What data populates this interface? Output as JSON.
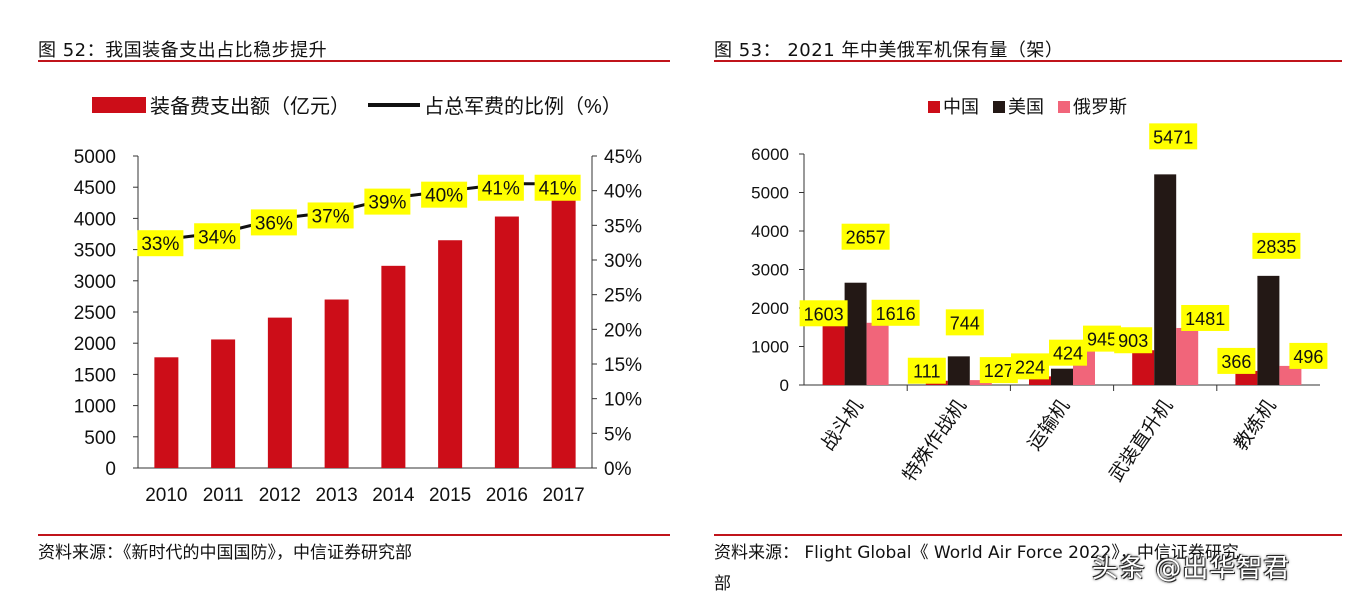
{
  "colors": {
    "accent": "#c0141b",
    "china": "#cc0d18",
    "usa": "#231815",
    "russia": "#f1657a",
    "label_bg": "#ffff00"
  },
  "left": {
    "figure_title": "图 52：我国装备支出占比稳步提升",
    "source": "资料来源：《新时代的中国国防》，中信证券研究部"
  },
  "right": {
    "figure_title": "图 53： 2021 年中美俄军机保有量（架）",
    "source_line1": "资料来源： Flight Global《 World Air Force 2022》，中信证券研究",
    "source_line2": "部"
  },
  "watermark": "头条 @出华智君",
  "chart_data": [
    {
      "type": "bar",
      "title": "我国装备支出占比稳步提升",
      "categories": [
        "2010",
        "2011",
        "2012",
        "2013",
        "2014",
        "2015",
        "2016",
        "2017"
      ],
      "series": [
        {
          "name": "装备费支出额（亿元）",
          "type": "bar",
          "axis": "left",
          "values": [
            1774,
            2060,
            2410,
            2700,
            3240,
            3650,
            4030,
            4290
          ]
        },
        {
          "name": "占总军费的比例（%）",
          "type": "line",
          "axis": "right",
          "values": [
            33,
            34,
            36,
            37,
            39,
            40,
            41,
            41
          ],
          "labels": [
            "33%",
            "34%",
            "36%",
            "37%",
            "39%",
            "40%",
            "41%",
            "41%"
          ]
        }
      ],
      "y_left": {
        "range": [
          0,
          5000
        ],
        "ticks": [
          "0",
          "500",
          "1000",
          "1500",
          "2000",
          "2500",
          "3000",
          "3500",
          "4000",
          "4500",
          "5000"
        ]
      },
      "y_right": {
        "range": [
          0,
          45
        ],
        "ticks": [
          "0%",
          "5%",
          "10%",
          "15%",
          "20%",
          "25%",
          "30%",
          "35%",
          "40%",
          "45%"
        ]
      },
      "legend_position": "top"
    },
    {
      "type": "bar",
      "title": "2021 年中美俄军机保有量（架）",
      "categories": [
        "战斗机",
        "特殊作战机",
        "运输机",
        "武装直升机",
        "教练机"
      ],
      "series": [
        {
          "name": "中国",
          "values": [
            1603,
            111,
            224,
            903,
            366
          ]
        },
        {
          "name": "美国",
          "values": [
            2657,
            744,
            424,
            5471,
            2835
          ]
        },
        {
          "name": "俄罗斯",
          "values": [
            1616,
            127,
            945,
            1481,
            496
          ]
        }
      ],
      "value_labels": [
        [
          "1603",
          "2657",
          "1616"
        ],
        [
          "111",
          "744",
          "127"
        ],
        [
          "224",
          "424",
          "945"
        ],
        [
          "903",
          "5471",
          "1481"
        ],
        [
          "366",
          "2835",
          "496"
        ]
      ],
      "y": {
        "range": [
          0,
          6000
        ],
        "ticks": [
          "0",
          "1000",
          "2000",
          "3000",
          "4000",
          "5000",
          "6000"
        ]
      },
      "legend_position": "top"
    }
  ]
}
